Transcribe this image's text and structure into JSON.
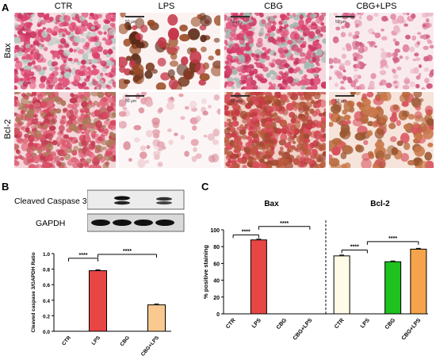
{
  "panelA": {
    "letter": "A",
    "columns": [
      "CTR",
      "LPS",
      "CBG",
      "CBG+LPS"
    ],
    "rows": [
      "Bax",
      "Bcl-2"
    ],
    "scale_bar": "50 μm"
  },
  "panelB": {
    "letter": "B",
    "blot_labels": [
      "Cleaved Caspase 3",
      "GAPDH"
    ]
  },
  "panelC": {
    "letter": "C",
    "group_titles": [
      "Bax",
      "Bcl-2"
    ]
  },
  "colors": {
    "ctr": "#fffbe6",
    "lps": "#e84545",
    "cbg": "#1ec11e",
    "cbg_lps": "#f5a44c",
    "cbg_lps_light": "#f9c98f"
  },
  "chart_data": [
    {
      "type": "bar",
      "panel": "B",
      "categories": [
        "CTR",
        "LPS",
        "CBG",
        "CBG+LPS"
      ],
      "values": [
        0,
        0.78,
        0,
        0.34
      ],
      "ylabel": "Cleaved caspase 3/GAPDH Ratio",
      "ylim": [
        0,
        1.0
      ],
      "yticks": [
        "0.0",
        "0.2",
        "0.4",
        "0.6",
        "0.8",
        "1.0"
      ],
      "colors": [
        "#fffbe6",
        "#e84545",
        "#ffffff",
        "#f9c98f"
      ],
      "significance": [
        {
          "from": 0,
          "to": 1,
          "label": "****"
        },
        {
          "from": 1,
          "to": 3,
          "label": "****"
        }
      ]
    },
    {
      "type": "bar",
      "panel": "C",
      "groups": [
        "Bax",
        "Bcl-2"
      ],
      "categories": [
        "CTR",
        "LPS",
        "CBG",
        "CBG+LPS",
        "CTR",
        "LPS",
        "CBG",
        "CBG+LPS"
      ],
      "values": [
        0,
        88,
        0,
        0,
        69,
        0,
        62,
        77
      ],
      "ylabel": "% positive staining",
      "ylim": [
        0,
        100
      ],
      "yticks": [
        "0",
        "20",
        "40",
        "60",
        "80",
        "100"
      ],
      "colors": [
        "#fffbe6",
        "#e84545",
        "#1ec11e",
        "#f5a44c",
        "#fffbe6",
        "#e84545",
        "#1ec11e",
        "#f5a44c"
      ],
      "significance": [
        {
          "from": 0,
          "to": 1,
          "label": "****"
        },
        {
          "from": 1,
          "to": 3,
          "label": "****"
        },
        {
          "from": 4,
          "to": 5,
          "label": "****"
        },
        {
          "from": 5,
          "to": 7,
          "label": "****"
        }
      ]
    }
  ]
}
